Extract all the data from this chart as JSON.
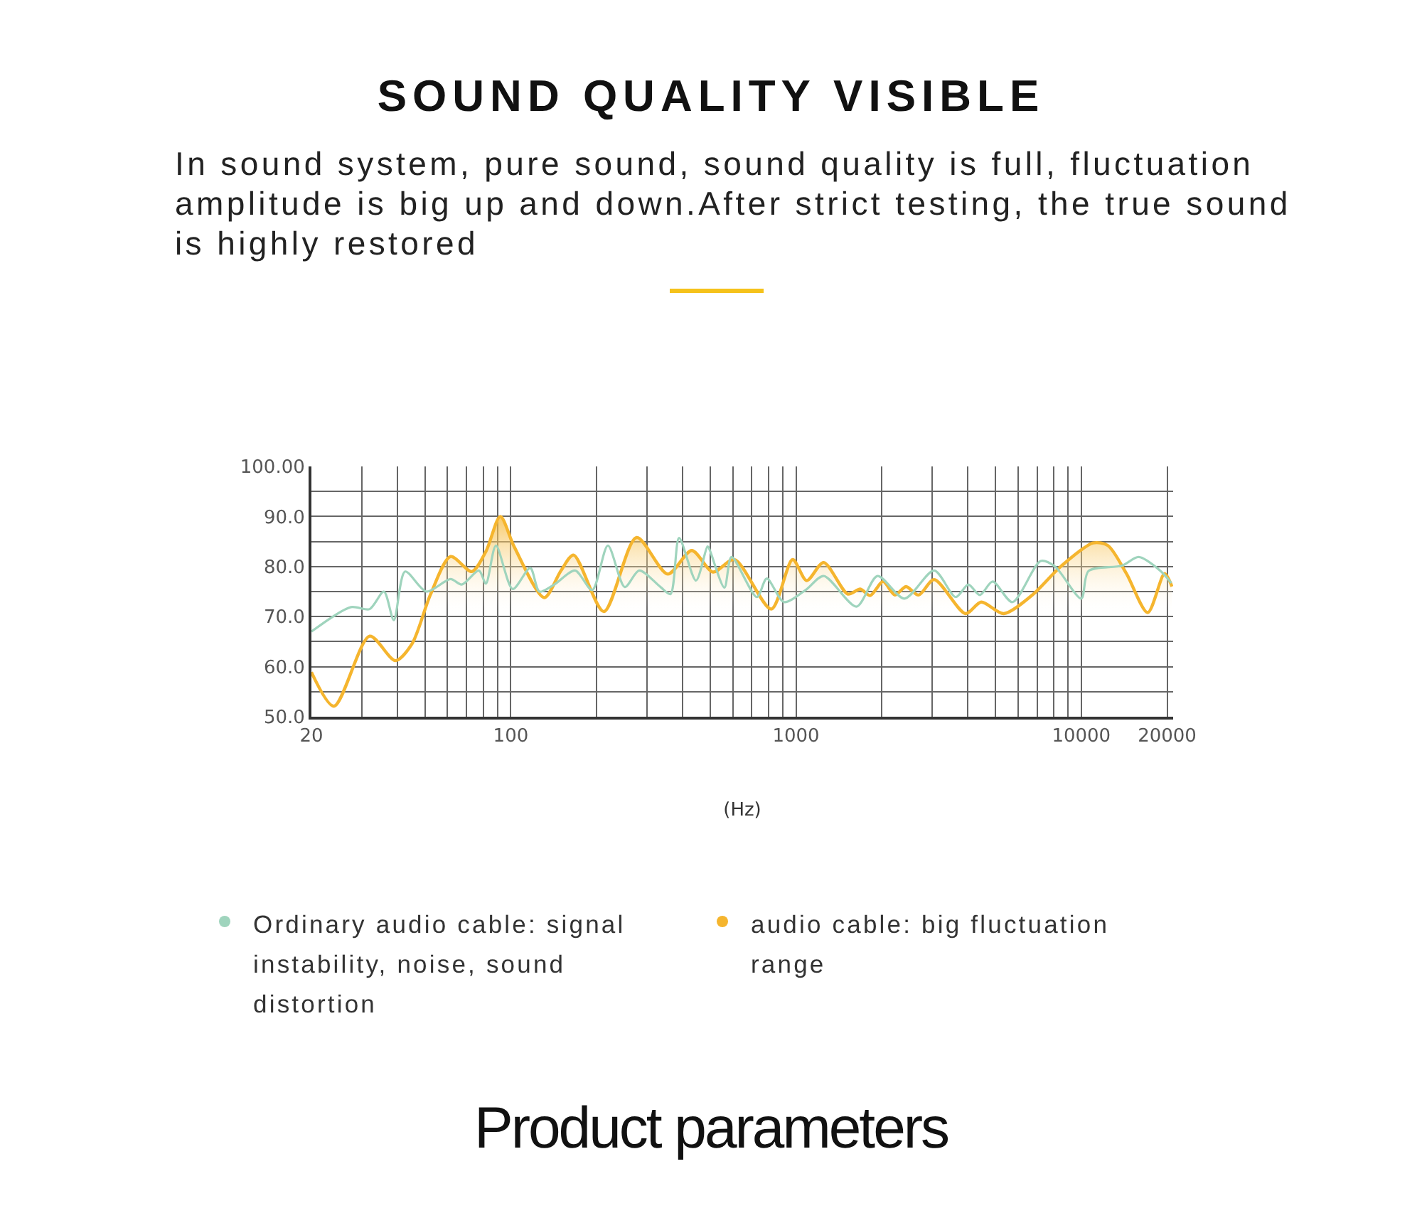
{
  "chart_data": {
    "type": "line",
    "title": "SOUND QUALITY VISIBLE",
    "subtitle": "In sound system, pure sound, sound quality is full, fluctuation amplitude is big up and down.After strict testing, the true sound is highly restored",
    "xlabel": "(Hz)",
    "annotations": [
      "Product parameters"
    ],
    "log": "x",
    "grid": true,
    "legend": "bottom",
    "xlim": [
      20,
      21000
    ],
    "xticks": [
      20,
      {
        "value": 30,
        "label": null
      },
      {
        "value": 40,
        "label": null
      },
      {
        "value": 50,
        "label": null
      },
      {
        "value": 60,
        "label": null
      },
      {
        "value": 70,
        "label": null
      },
      {
        "value": 80,
        "label": null
      },
      {
        "value": 90,
        "label": null
      },
      100,
      {
        "value": 200,
        "label": null
      },
      {
        "value": 300,
        "label": null
      },
      {
        "value": 400,
        "label": null
      },
      {
        "value": 500,
        "label": null
      },
      {
        "value": 600,
        "label": null
      },
      {
        "value": 700,
        "label": null
      },
      {
        "value": 800,
        "label": null
      },
      {
        "value": 900,
        "label": null
      },
      1000,
      {
        "value": 2000,
        "label": null
      },
      {
        "value": 3000,
        "label": null
      },
      {
        "value": 4000,
        "label": null
      },
      {
        "value": 5000,
        "label": null
      },
      {
        "value": 6000,
        "label": null
      },
      {
        "value": 7000,
        "label": null
      },
      {
        "value": 8000,
        "label": null
      },
      {
        "value": 9000,
        "label": null
      },
      10000,
      20000
    ],
    "ylim": [
      50,
      100
    ],
    "yticks": [
      {
        "value": 50,
        "label": "50.0"
      },
      {
        "value": 55,
        "label": null
      },
      {
        "value": 60,
        "label": "60.0"
      },
      {
        "value": 65,
        "label": null
      },
      {
        "value": 70,
        "label": "70.0"
      },
      {
        "value": 75,
        "label": null
      },
      {
        "value": 80,
        "label": "80.0"
      },
      {
        "value": 85,
        "label": null
      },
      {
        "value": 90,
        "label": "90.0"
      },
      {
        "value": 95,
        "label": null
      },
      {
        "value": 100,
        "label": "100.00"
      }
    ],
    "series": [
      {
        "name": "Ordinary audio cable: signal instability, noise, sound distortion",
        "color": "#9fd4bd",
        "x": [
          20,
          27.5,
          32,
          35.9,
          38.9,
          42.6,
          50.6,
          61.5,
          67.3,
          77.3,
          81.8,
          88.7,
          101.6,
          117,
          126,
          142,
          168,
          193,
          219,
          251,
          282,
          335,
          363,
          389,
          446,
          489,
          494,
          561,
          594,
          729,
          790,
          908,
          1080,
          1250,
          1630,
          1930,
          2400,
          3050,
          3630,
          4020,
          4410,
          4890,
          5740,
          7210,
          8090,
          10000,
          10600,
          13900,
          15900,
          18900,
          20700
        ],
        "values": [
          67,
          71.9,
          71.5,
          75,
          69.3,
          79,
          75,
          77.5,
          76.4,
          79.2,
          76.6,
          84.2,
          75.5,
          79.7,
          75,
          76.4,
          79.2,
          75.3,
          84.2,
          75.9,
          79.2,
          75.9,
          74.5,
          85.7,
          77.2,
          84,
          83.8,
          75.8,
          81.9,
          73.9,
          77.6,
          72.9,
          75.3,
          78.1,
          72,
          78.1,
          73.6,
          79.2,
          73.9,
          76.4,
          74.3,
          77,
          72.9,
          81.1,
          80,
          73.6,
          79.1,
          80.2,
          81.9,
          79.2,
          76.7
        ]
      },
      {
        "name": "audio cable: big fluctuation range",
        "color": "#f5b52e",
        "type": "area",
        "x": [
          20,
          24,
          32,
          39.4,
          45,
          52.3,
          61.5,
          73,
          81.8,
          91.9,
          102.7,
          131,
          150,
          166,
          212,
          276,
          355,
          431,
          512,
          608,
          819,
          973,
          1090,
          1250,
          1520,
          1680,
          1820,
          2020,
          2220,
          2430,
          2690,
          3050,
          3930,
          4460,
          5350,
          6730,
          8470,
          11000,
          12400,
          14400,
          17100,
          19600,
          20800
        ],
        "values": [
          58.9,
          52.1,
          66.1,
          61.2,
          64.5,
          74.4,
          82,
          79,
          83,
          90,
          84,
          73.8,
          79.2,
          82.3,
          71,
          85.8,
          78.5,
          83.2,
          78.9,
          81.4,
          71.5,
          81.4,
          77.2,
          80.8,
          74.5,
          75.5,
          74.2,
          77,
          74.3,
          76,
          74.3,
          77.4,
          70.6,
          72.9,
          70.6,
          74.3,
          80,
          84.7,
          84.2,
          78.6,
          70.8,
          78.6,
          76
        ]
      }
    ]
  }
}
